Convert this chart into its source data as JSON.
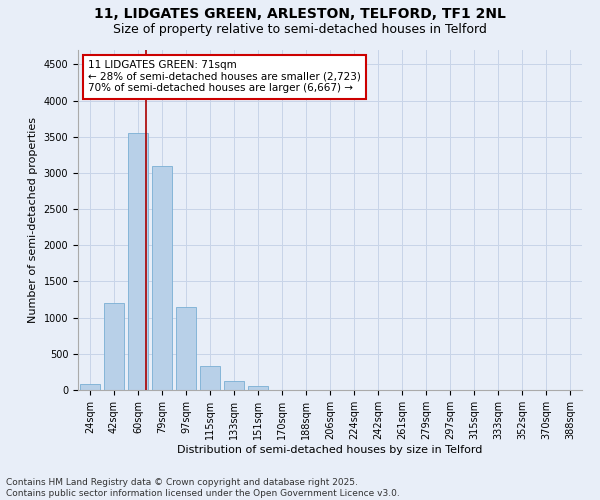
{
  "title_line1": "11, LIDGATES GREEN, ARLESTON, TELFORD, TF1 2NL",
  "title_line2": "Size of property relative to semi-detached houses in Telford",
  "xlabel": "Distribution of semi-detached houses by size in Telford",
  "ylabel": "Number of semi-detached properties",
  "categories": [
    "24sqm",
    "42sqm",
    "60sqm",
    "79sqm",
    "97sqm",
    "115sqm",
    "133sqm",
    "151sqm",
    "170sqm",
    "188sqm",
    "206sqm",
    "224sqm",
    "242sqm",
    "261sqm",
    "279sqm",
    "297sqm",
    "315sqm",
    "333sqm",
    "352sqm",
    "370sqm",
    "388sqm"
  ],
  "values": [
    80,
    1200,
    3550,
    3100,
    1150,
    330,
    130,
    50,
    0,
    0,
    0,
    0,
    0,
    0,
    0,
    0,
    0,
    0,
    0,
    0,
    0
  ],
  "bar_color": "#b8d0e8",
  "bar_edge_color": "#7aafd4",
  "red_line_color": "#aa0000",
  "annotation_text": "11 LIDGATES GREEN: 71sqm\n← 28% of semi-detached houses are smaller (2,723)\n70% of semi-detached houses are larger (6,667) →",
  "annotation_box_color": "#ffffff",
  "annotation_box_edge_color": "#cc0000",
  "ylim": [
    0,
    4700
  ],
  "yticks": [
    0,
    500,
    1000,
    1500,
    2000,
    2500,
    3000,
    3500,
    4000,
    4500
  ],
  "grid_color": "#c8d4e8",
  "background_color": "#e8eef8",
  "plot_bg_color": "#e8eef8",
  "footer_text": "Contains HM Land Registry data © Crown copyright and database right 2025.\nContains public sector information licensed under the Open Government Licence v3.0.",
  "title_fontsize": 10,
  "subtitle_fontsize": 9,
  "axis_label_fontsize": 8,
  "tick_fontsize": 7,
  "annotation_fontsize": 7.5,
  "footer_fontsize": 6.5
}
